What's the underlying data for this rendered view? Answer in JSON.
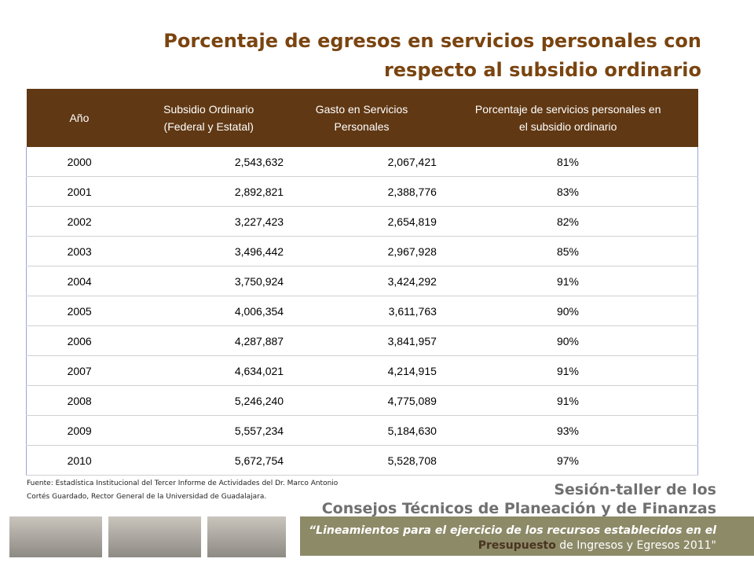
{
  "header": {
    "title_lines": [
      "Porcentaje de egresos en servicios personales con",
      "respecto al subsidio ordinario"
    ]
  },
  "table": {
    "columns": [
      [
        "Año"
      ],
      [
        "Subsidio Ordinario",
        "(Federal y Estatal)"
      ],
      [
        "Gasto en Servicios",
        "Personales"
      ],
      [
        "Porcentaje de servicios personales en",
        "el subsidio ordinario"
      ]
    ],
    "rows": [
      [
        "2000",
        "2,543,632",
        "2,067,421",
        "81%"
      ],
      [
        "2001",
        "2,892,821",
        "2,388,776",
        "83%"
      ],
      [
        "2002",
        "3,227,423",
        "2,654,819",
        "82%"
      ],
      [
        "2003",
        "3,496,442",
        "2,967,928",
        "85%"
      ],
      [
        "2004",
        "3,750,924",
        "3,424,292",
        "91%"
      ],
      [
        "2005",
        "4,006,354",
        "3,611,763",
        "90%"
      ],
      [
        "2006",
        "4,287,887",
        "3,841,957",
        "90%"
      ],
      [
        "2007",
        "4,634,021",
        "4,214,915",
        "91%"
      ],
      [
        "2008",
        "5,246,240",
        "4,775,089",
        "91%"
      ],
      [
        "2009",
        "5,557,234",
        "5,184,630",
        "93%"
      ],
      [
        "2010",
        "5,672,754",
        "5,528,708",
        "97%"
      ]
    ]
  },
  "source_lines": [
    "Fuente: Estadística  Institucional del Tercer Informe de Actividades del Dr. Marco Antonio",
    "Cortés Guardado, Rector General de la Universidad de Guadalajara."
  ],
  "footer": {
    "line1": "Sesión-taller de los",
    "line2": "Consejos Técnicos de Planeación y de Finanzas",
    "quote_line1": "“Lineamientos para el ejercicio de los recursos establecidos en el",
    "quote_bold": "Presupuesto",
    "quote_rest": " de Ingresos y Egresos 2011\""
  }
}
